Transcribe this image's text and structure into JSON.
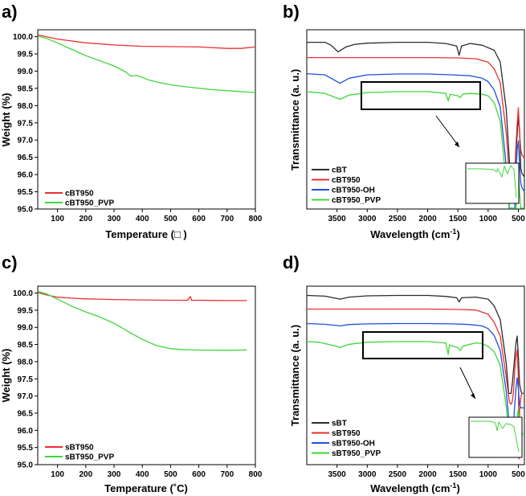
{
  "colors": {
    "red": "#e8302f",
    "green": "#3fd63b",
    "black": "#2b2b2b",
    "blue": "#1f4fe0"
  },
  "panels": [
    {
      "label": "a)",
      "type": "tga",
      "xlabel": "Temperature (□ )",
      "ylabel": "Weight (%)",
      "xlim": [
        30,
        800
      ],
      "ylim": [
        95.0,
        100.2
      ],
      "xticks": [
        "100",
        "200",
        "300",
        "400",
        "500",
        "600",
        "700",
        "800"
      ],
      "yticks": [
        "100.0",
        "99.5",
        "99.0",
        "98.5",
        "98.0",
        "97.5",
        "97.0",
        "96.5",
        "96.0",
        "95.5",
        "95.0"
      ],
      "series": [
        {
          "name": "cBT950",
          "color": "red",
          "x": [
            30,
            100,
            200,
            300,
            400,
            500,
            600,
            700,
            750,
            800
          ],
          "y": [
            100.05,
            99.93,
            99.82,
            99.76,
            99.72,
            99.71,
            99.7,
            99.66,
            99.66,
            99.7
          ]
        },
        {
          "name": "cBT950_PVP",
          "color": "green",
          "x": [
            30,
            60,
            100,
            150,
            200,
            250,
            300,
            340,
            360,
            380,
            420,
            470,
            520,
            580,
            650,
            720,
            800
          ],
          "y": [
            100.02,
            99.95,
            99.82,
            99.63,
            99.45,
            99.3,
            99.15,
            98.98,
            98.85,
            98.88,
            98.75,
            98.65,
            98.58,
            98.52,
            98.46,
            98.42,
            98.38
          ]
        }
      ]
    },
    {
      "label": "b)",
      "type": "ftir",
      "xlabel": "Wavelength (cm",
      "xlabel_sup": "-1",
      "xlabel_end": ")",
      "ylabel": "Transmittance (a. u.)",
      "xlim": [
        4000,
        400
      ],
      "xticks": [
        "3500",
        "3000",
        "2500",
        "2000",
        "1500",
        "1000",
        "500"
      ],
      "series": [
        {
          "name": "cBT",
          "color": "black",
          "x": [
            4000,
            3700,
            3600,
            3480,
            3350,
            3200,
            3000,
            2500,
            2000,
            1700,
            1520,
            1480,
            1440,
            1300,
            1100,
            900,
            800,
            700,
            640,
            600,
            560,
            540,
            520,
            500,
            480,
            460,
            440,
            400
          ],
          "y": [
            0.3,
            0.3,
            2,
            6,
            3,
            1.5,
            0.8,
            0.3,
            0.3,
            1,
            2.5,
            8,
            2.5,
            1,
            2,
            5,
            12,
            40,
            75,
            85,
            78,
            65,
            55,
            45,
            52,
            75,
            78,
            80
          ]
        },
        {
          "name": "cBT950",
          "color": "red",
          "x": [
            4000,
            3500,
            3000,
            2500,
            2000,
            1500,
            1200,
            1000,
            900,
            800,
            700,
            650,
            620,
            590,
            560,
            540,
            520,
            500,
            480,
            460,
            440,
            400
          ],
          "y": [
            0.3,
            0.3,
            0.3,
            0.3,
            0.3,
            0.5,
            1,
            3,
            7,
            15,
            45,
            70,
            78,
            80,
            68,
            52,
            40,
            30,
            45,
            55,
            58,
            60
          ]
        },
        {
          "name": "cBT950-OH",
          "color": "blue",
          "x": [
            4000,
            3700,
            3450,
            3300,
            3000,
            2500,
            2000,
            1600,
            1300,
            1100,
            1000,
            900,
            800,
            700,
            650,
            620,
            590,
            560,
            540,
            520,
            500,
            480,
            460,
            440,
            400
          ],
          "y": [
            0.3,
            1,
            6,
            3,
            1,
            0.5,
            0.5,
            1,
            1.5,
            3,
            5,
            10,
            20,
            55,
            80,
            88,
            90,
            80,
            60,
            45,
            40,
            55,
            65,
            68,
            70
          ]
        },
        {
          "name": "cBT950_PVP",
          "color": "green",
          "x": [
            4000,
            3700,
            3450,
            3300,
            3000,
            2500,
            2000,
            1700,
            1660,
            1630,
            1500,
            1460,
            1420,
            1300,
            1100,
            1000,
            900,
            800,
            700,
            640,
            600,
            570,
            540,
            520,
            500,
            480,
            460,
            440,
            400
          ],
          "y": [
            0.5,
            1.5,
            5,
            2.5,
            1,
            0.5,
            0.5,
            1.5,
            6,
            2,
            3,
            4,
            2,
            1.5,
            2,
            3,
            7,
            18,
            55,
            82,
            92,
            88,
            70,
            55,
            45,
            60,
            70,
            72,
            74
          ]
        }
      ]
    },
    {
      "label": "c)",
      "type": "tga",
      "xlabel": "Temperature (˚C)",
      "ylabel": "Weight (%)",
      "xlim": [
        30,
        800
      ],
      "ylim": [
        95.0,
        100.2
      ],
      "xticks": [
        "100",
        "200",
        "300",
        "400",
        "500",
        "600",
        "700",
        "800"
      ],
      "yticks": [
        "100.0",
        "99.5",
        "99.0",
        "98.5",
        "98.0",
        "97.5",
        "97.0",
        "96.5",
        "96.0",
        "95.5",
        "95.0"
      ],
      "series": [
        {
          "name": "sBT950",
          "color": "red",
          "x": [
            30,
            60,
            100,
            150,
            200,
            300,
            400,
            500,
            560,
            570,
            575,
            580,
            600,
            700,
            770
          ],
          "y": [
            100.02,
            99.95,
            99.88,
            99.85,
            99.83,
            99.81,
            99.8,
            99.79,
            99.79,
            99.9,
            99.78,
            99.79,
            99.79,
            99.78,
            99.78
          ]
        },
        {
          "name": "sBT950_PVP",
          "color": "green",
          "x": [
            30,
            60,
            100,
            150,
            200,
            250,
            300,
            350,
            400,
            450,
            500,
            550,
            600,
            700,
            770
          ],
          "y": [
            100.05,
            99.98,
            99.82,
            99.62,
            99.45,
            99.3,
            99.12,
            98.88,
            98.65,
            98.47,
            98.38,
            98.35,
            98.34,
            98.33,
            98.34
          ]
        }
      ]
    },
    {
      "label": "d)",
      "type": "ftir",
      "xlabel": "Wavelength (cm",
      "xlabel_sup": "-1",
      "xlabel_end": ")",
      "ylabel": "Transmittance (a. u.)",
      "xlim": [
        4000,
        400
      ],
      "xticks": [
        "3500",
        "3000",
        "2500",
        "2000",
        "1500",
        "1000",
        "500"
      ],
      "series": [
        {
          "name": "sBT",
          "color": "black",
          "x": [
            4000,
            3700,
            3450,
            3300,
            3000,
            2500,
            2000,
            1700,
            1520,
            1480,
            1440,
            1200,
            1000,
            900,
            800,
            700,
            660,
            620,
            600,
            570,
            540,
            520,
            500,
            480,
            460,
            440,
            400
          ],
          "y": [
            0.3,
            0.8,
            3,
            1.5,
            0.6,
            0.3,
            0.3,
            1,
            2,
            5,
            2,
            1.5,
            3,
            8,
            18,
            50,
            72,
            72,
            65,
            50,
            35,
            30,
            45,
            65,
            70,
            72,
            72
          ]
        },
        {
          "name": "sBT950",
          "color": "red",
          "x": [
            4000,
            3500,
            3000,
            2500,
            2000,
            1500,
            1200,
            1000,
            900,
            800,
            700,
            650,
            620,
            600,
            580,
            560,
            540,
            520,
            500,
            490,
            480,
            460,
            440,
            400
          ],
          "y": [
            0.3,
            0.3,
            0.3,
            0.3,
            0.3,
            0.5,
            1,
            4,
            10,
            20,
            50,
            68,
            70,
            68,
            60,
            45,
            35,
            30,
            50,
            110,
            75,
            65,
            62,
            62
          ]
        },
        {
          "name": "sBT950-OH",
          "color": "blue",
          "x": [
            4000,
            3700,
            3450,
            3300,
            3000,
            2500,
            2000,
            1600,
            1300,
            1100,
            1000,
            900,
            800,
            700,
            650,
            620,
            600,
            580,
            560,
            540,
            520,
            500,
            480,
            460,
            440,
            400
          ],
          "y": [
            0.3,
            0.8,
            2,
            1,
            0.5,
            0.3,
            0.3,
            0.5,
            1,
            2,
            4,
            9,
            20,
            50,
            75,
            80,
            80,
            72,
            60,
            48,
            40,
            48,
            60,
            62,
            62,
            62
          ]
        },
        {
          "name": "sBT950_PVP",
          "color": "green",
          "x": [
            4000,
            3800,
            3500,
            3450,
            3400,
            3300,
            3000,
            2500,
            2000,
            1700,
            1660,
            1640,
            1500,
            1460,
            1420,
            1300,
            1200,
            1100,
            1000,
            900,
            800,
            700,
            650,
            620,
            600,
            580,
            560,
            540,
            520,
            500,
            480,
            460,
            440,
            400
          ],
          "y": [
            0.5,
            1,
            4,
            5,
            4,
            2.5,
            1,
            0.5,
            0.5,
            1.5,
            10,
            3,
            5,
            7,
            4,
            2.5,
            1.5,
            2,
            4,
            8,
            18,
            48,
            72,
            80,
            82,
            80,
            72,
            65,
            55,
            50,
            62,
            66,
            68,
            68
          ]
        }
      ]
    }
  ]
}
